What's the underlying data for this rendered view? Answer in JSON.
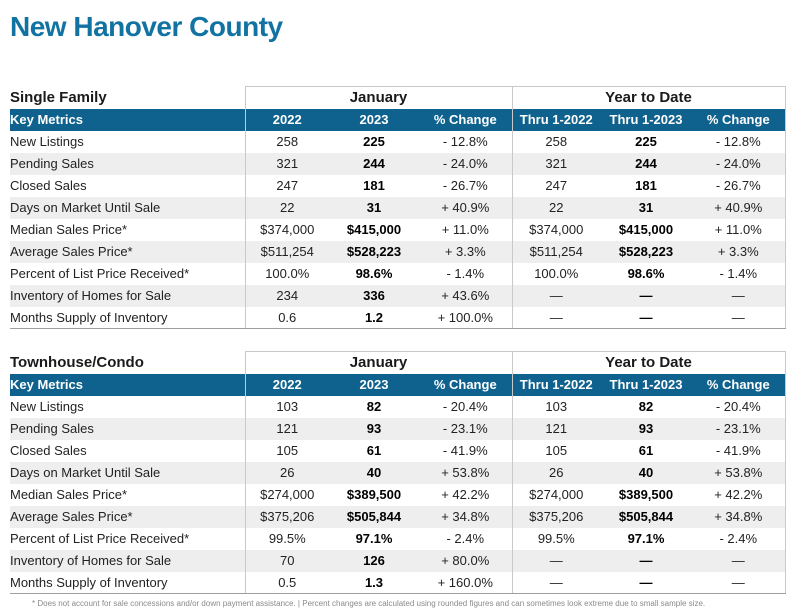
{
  "page": {
    "title": "New Hanover County",
    "footnote": "* Does not account for sale concessions and/or down payment assistance. | Percent changes are calculated using rounded figures and can sometimes look extreme due to small sample size."
  },
  "colors": {
    "title_blue": "#1273a2",
    "band_teal": "#0f628e",
    "row_alt_gray": "#eeeeef",
    "border_gray": "#c9c9c9"
  },
  "tables": [
    {
      "id": "single-family",
      "section_label": "Single Family",
      "group_headers": [
        "January",
        "Year to Date"
      ],
      "key_metrics_label": "Key Metrics",
      "column_headers": [
        "2022",
        "2023",
        "% Change",
        "Thru 1-2022",
        "Thru 1-2023",
        "% Change"
      ],
      "rows": [
        {
          "label": "New Listings",
          "values": [
            "258",
            "225",
            "- 12.8%",
            "258",
            "225",
            "- 12.8%"
          ]
        },
        {
          "label": "Pending Sales",
          "values": [
            "321",
            "244",
            "- 24.0%",
            "321",
            "244",
            "- 24.0%"
          ]
        },
        {
          "label": "Closed Sales",
          "values": [
            "247",
            "181",
            "- 26.7%",
            "247",
            "181",
            "- 26.7%"
          ]
        },
        {
          "label": "Days on Market Until Sale",
          "values": [
            "22",
            "31",
            "+ 40.9%",
            "22",
            "31",
            "+ 40.9%"
          ]
        },
        {
          "label": "Median Sales Price*",
          "values": [
            "$374,000",
            "$415,000",
            "+ 11.0%",
            "$374,000",
            "$415,000",
            "+ 11.0%"
          ]
        },
        {
          "label": "Average Sales Price*",
          "values": [
            "$511,254",
            "$528,223",
            "+ 3.3%",
            "$511,254",
            "$528,223",
            "+ 3.3%"
          ]
        },
        {
          "label": "Percent of List Price Received*",
          "values": [
            "100.0%",
            "98.6%",
            "- 1.4%",
            "100.0%",
            "98.6%",
            "- 1.4%"
          ]
        },
        {
          "label": "Inventory of Homes for Sale",
          "values": [
            "234",
            "336",
            "+ 43.6%",
            "—",
            "—",
            "—"
          ]
        },
        {
          "label": "Months Supply of Inventory",
          "values": [
            "0.6",
            "1.2",
            "+ 100.0%",
            "—",
            "—",
            "—"
          ]
        }
      ]
    },
    {
      "id": "townhouse-condo",
      "section_label": "Townhouse/Condo",
      "group_headers": [
        "January",
        "Year to Date"
      ],
      "key_metrics_label": "Key Metrics",
      "column_headers": [
        "2022",
        "2023",
        "% Change",
        "Thru 1-2022",
        "Thru 1-2023",
        "% Change"
      ],
      "rows": [
        {
          "label": "New Listings",
          "values": [
            "103",
            "82",
            "- 20.4%",
            "103",
            "82",
            "- 20.4%"
          ]
        },
        {
          "label": "Pending Sales",
          "values": [
            "121",
            "93",
            "- 23.1%",
            "121",
            "93",
            "- 23.1%"
          ]
        },
        {
          "label": "Closed Sales",
          "values": [
            "105",
            "61",
            "- 41.9%",
            "105",
            "61",
            "- 41.9%"
          ]
        },
        {
          "label": "Days on Market Until Sale",
          "values": [
            "26",
            "40",
            "+ 53.8%",
            "26",
            "40",
            "+ 53.8%"
          ]
        },
        {
          "label": "Median Sales Price*",
          "values": [
            "$274,000",
            "$389,500",
            "+ 42.2%",
            "$274,000",
            "$389,500",
            "+ 42.2%"
          ]
        },
        {
          "label": "Average Sales Price*",
          "values": [
            "$375,206",
            "$505,844",
            "+ 34.8%",
            "$375,206",
            "$505,844",
            "+ 34.8%"
          ]
        },
        {
          "label": "Percent of List Price Received*",
          "values": [
            "99.5%",
            "97.1%",
            "- 2.4%",
            "99.5%",
            "97.1%",
            "- 2.4%"
          ]
        },
        {
          "label": "Inventory of Homes for Sale",
          "values": [
            "70",
            "126",
            "+ 80.0%",
            "—",
            "—",
            "—"
          ]
        },
        {
          "label": "Months Supply of Inventory",
          "values": [
            "0.5",
            "1.3",
            "+ 160.0%",
            "—",
            "—",
            "—"
          ]
        }
      ]
    }
  ]
}
